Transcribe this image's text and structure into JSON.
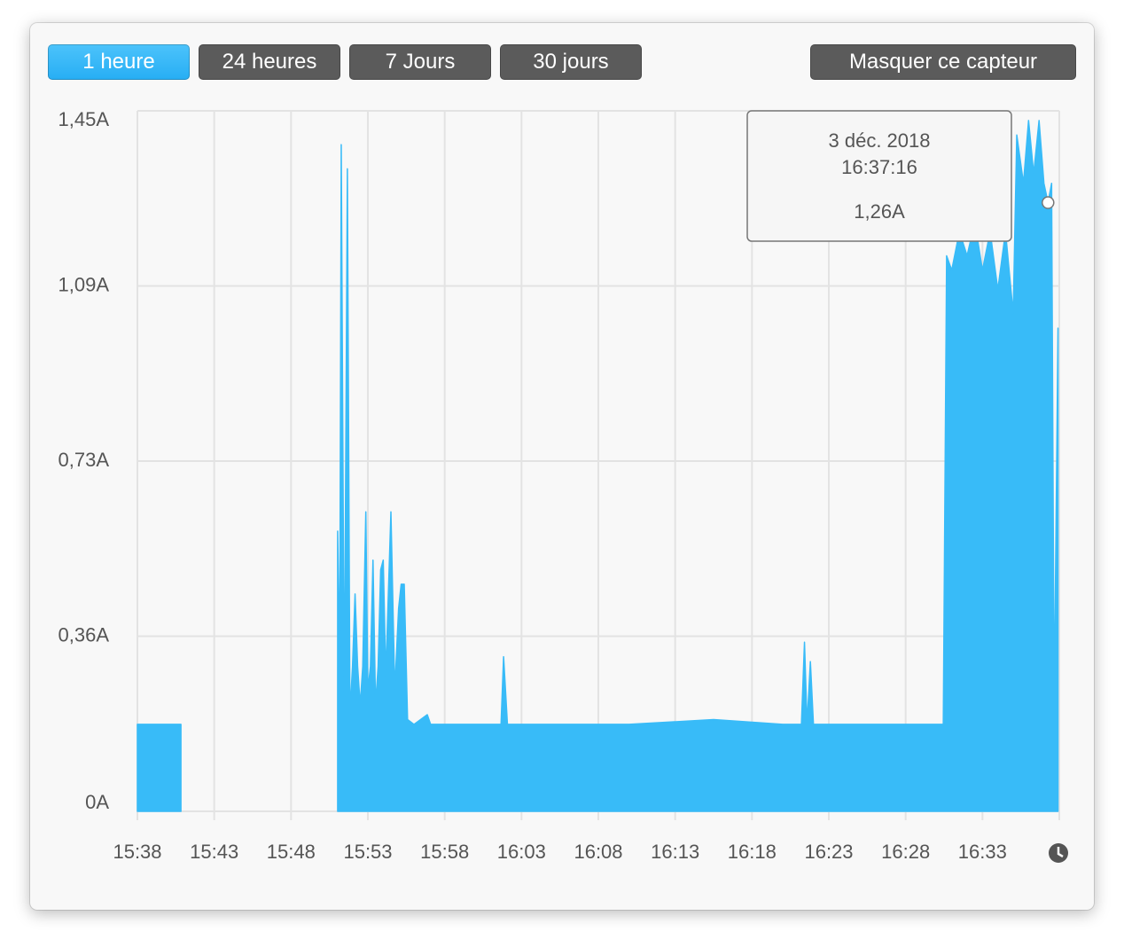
{
  "buttons": [
    {
      "label": "1 heure",
      "active": true
    },
    {
      "label": "24 heures",
      "active": false
    },
    {
      "label": "7 Jours",
      "active": false
    },
    {
      "label": "30 jours",
      "active": false
    }
  ],
  "hide_button": "Masquer ce capteur",
  "chart_data": {
    "type": "area",
    "color": "#38bbf8",
    "grid": true,
    "x": [
      "15:38:00",
      "15:40:50",
      "15:45:00",
      "15:51:02",
      "15:51:10",
      "15:51:16",
      "15:51:28",
      "15:51:40",
      "15:51:50",
      "15:52:00",
      "15:52:10",
      "15:52:20",
      "15:52:30",
      "15:52:40",
      "15:52:52",
      "15:53:00",
      "15:53:10",
      "15:53:20",
      "15:53:30",
      "15:53:40",
      "15:53:50",
      "15:54:00",
      "15:54:10",
      "15:54:20",
      "15:54:30",
      "15:54:45",
      "15:55:00",
      "15:55:10",
      "15:55:22",
      "15:55:35",
      "15:56:00",
      "15:56:52",
      "15:57:05",
      "15:58:00",
      "16:01:40",
      "16:01:50",
      "16:02:05",
      "16:10:00",
      "16:15:30",
      "16:20:00",
      "16:21:13",
      "16:21:25",
      "16:21:35",
      "16:21:48",
      "16:22:00",
      "16:30:27",
      "16:30:40",
      "16:31:00",
      "16:31:30",
      "16:32:00",
      "16:32:30",
      "16:33:00",
      "16:33:30",
      "16:34:00",
      "16:34:30",
      "16:35:00",
      "16:35:14",
      "16:35:40",
      "16:36:00",
      "16:36:20",
      "16:36:41",
      "16:37:00",
      "16:37:16",
      "16:37:30",
      "16:37:40",
      "16:37:55"
    ],
    "values": [
      0.18,
      0.18,
      null,
      0.58,
      0.3,
      1.38,
      0.2,
      1.33,
      0.2,
      0.3,
      0.45,
      0.3,
      0.22,
      0.3,
      0.62,
      0.25,
      0.3,
      0.52,
      0.22,
      0.3,
      0.5,
      0.52,
      0.28,
      0.45,
      0.62,
      0.25,
      0.42,
      0.47,
      0.47,
      0.19,
      0.18,
      0.2,
      0.18,
      0.18,
      0.18,
      0.32,
      0.18,
      0.18,
      0.19,
      0.18,
      0.18,
      0.35,
      0.18,
      0.31,
      0.18,
      0.18,
      1.15,
      1.12,
      1.2,
      1.15,
      1.22,
      1.12,
      1.2,
      1.08,
      1.2,
      1.03,
      1.4,
      1.3,
      1.43,
      1.32,
      1.43,
      1.3,
      1.26,
      1.3,
      0.2,
      1.0
    ],
    "xlim": [
      "15:38",
      "16:38"
    ],
    "xticks": [
      "15:38",
      "15:43",
      "15:48",
      "15:53",
      "15:58",
      "16:03",
      "16:08",
      "16:13",
      "16:18",
      "16:23",
      "16:28",
      "16:33"
    ],
    "ylim": [
      0,
      1.45
    ],
    "yticks": [
      {
        "value": 0,
        "label": "0A"
      },
      {
        "value": 0.3625,
        "label": "0,36A"
      },
      {
        "value": 0.725,
        "label": "0,73A"
      },
      {
        "value": 1.0875,
        "label": "1,09A"
      },
      {
        "value": 1.45,
        "label": "1,45A"
      }
    ],
    "tooltip": {
      "date": "3 déc. 2018",
      "time": "16:37:16",
      "label": "1,26A",
      "index": 62
    }
  }
}
